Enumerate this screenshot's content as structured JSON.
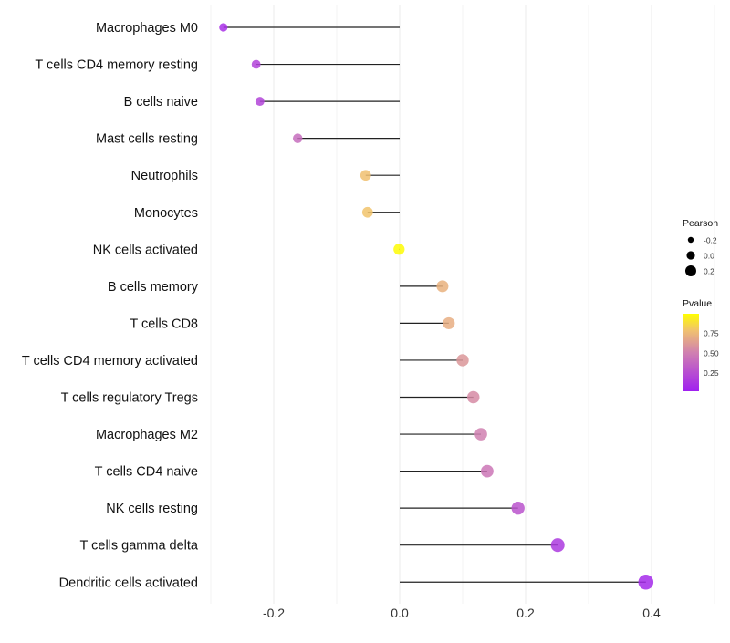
{
  "chart_data": {
    "type": "lollipop",
    "categories": [
      "Macrophages M0",
      "T cells CD4 memory resting",
      "B cells naive",
      "Mast cells resting",
      "Neutrophils",
      "Monocytes",
      "NK cells activated",
      "B cells memory",
      "T cells CD8",
      "T cells CD4 memory activated",
      "T cells regulatory  Tregs",
      "Macrophages M2",
      "T cells CD4 naive",
      "NK cells resting",
      "T cells gamma delta",
      "Dendritic cells activated"
    ],
    "pearson": [
      -0.28,
      -0.228,
      -0.222,
      -0.162,
      -0.054,
      -0.051,
      -0.001,
      0.068,
      0.078,
      0.1,
      0.117,
      0.129,
      0.139,
      0.188,
      0.251,
      0.391
    ],
    "pvalue": [
      0.08,
      0.18,
      0.19,
      0.4,
      0.78,
      0.79,
      0.99,
      0.72,
      0.7,
      0.6,
      0.55,
      0.5,
      0.45,
      0.27,
      0.13,
      0.05
    ],
    "xlim": [
      -0.3,
      0.52
    ],
    "xticks": [
      -0.2,
      0.0,
      0.2,
      0.4
    ],
    "xtick_labels": [
      "-0.2",
      "0.0",
      "0.2",
      "0.4"
    ],
    "grid": true,
    "legend": {
      "size_title": "Pearson",
      "size_labels": [
        "-0.2",
        "0.0",
        "0.2"
      ],
      "size_values": [
        -0.2,
        0.0,
        0.2
      ],
      "color_title": "Pvalue",
      "color_labels": [
        "0.75",
        "0.50",
        "0.25"
      ],
      "color_values": [
        0.75,
        0.5,
        0.25
      ],
      "color_range": [
        0.02,
        1.0
      ],
      "placement": "right"
    },
    "colors": {
      "low": "#a020f0",
      "mid": "#d080b0",
      "high_mid": "#f0c070",
      "high": "#ffff00"
    }
  }
}
